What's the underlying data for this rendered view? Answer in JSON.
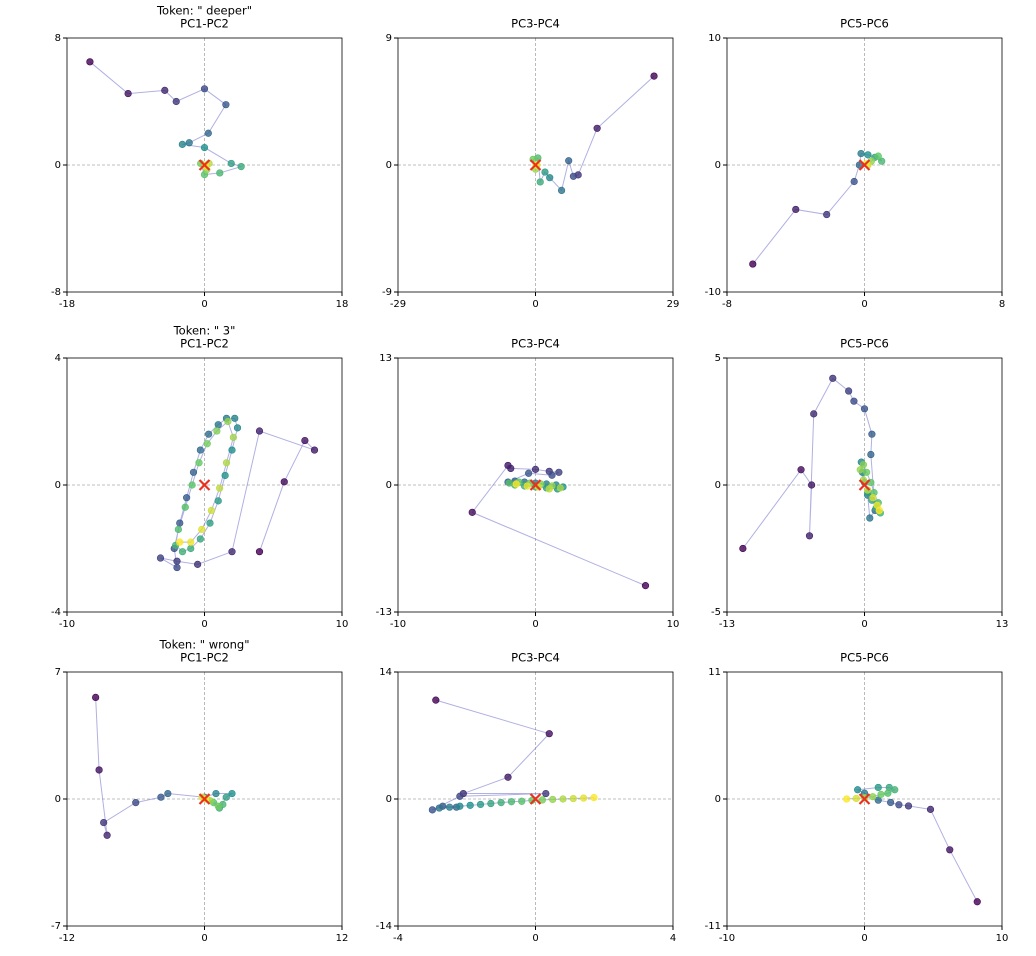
{
  "style": {
    "colormap": [
      "#440154",
      "#3b528b",
      "#21918c",
      "#5ec962",
      "#fde725"
    ],
    "line_color": "#7b7bd0",
    "marker_color": "#e8311f"
  },
  "chart_data": [
    {
      "type": "scatter",
      "title": "Token: \" deeper\"",
      "subtitle": "PC1-PC2",
      "xlim": [
        -18,
        18
      ],
      "ylim": [
        -8,
        8
      ],
      "xticks": [
        -18,
        0,
        18
      ],
      "yticks": [
        -8,
        0,
        8
      ],
      "x": [
        -15,
        -10,
        -5.2,
        -3.7,
        0,
        2.8,
        0.5,
        -2,
        -2.9,
        0,
        3.5,
        4.8,
        2,
        0,
        -0.5,
        0.3,
        0.6,
        0.2,
        0.1
      ],
      "y": [
        6.5,
        4.5,
        4.7,
        4,
        4.8,
        3.8,
        2,
        1.4,
        1.3,
        1.1,
        0.1,
        -0.1,
        -0.5,
        -0.6,
        0.1,
        -0.3,
        0.1,
        -0.1,
        0
      ],
      "marker": {
        "x": 0,
        "y": 0
      }
    },
    {
      "type": "scatter",
      "title": "PC3-PC4",
      "xlim": [
        -29,
        29
      ],
      "ylim": [
        -9,
        9
      ],
      "xticks": [
        -29,
        0,
        29
      ],
      "yticks": [
        -9,
        0,
        9
      ],
      "x": [
        25,
        13,
        9,
        8,
        7,
        5.5,
        3,
        2,
        1,
        0.5,
        -0.5,
        0,
        0.3,
        0.1
      ],
      "y": [
        6.3,
        2.6,
        -0.7,
        -0.8,
        0.3,
        -1.8,
        -0.9,
        -0.5,
        -1.2,
        0.5,
        0.4,
        -0.3,
        0,
        0
      ],
      "marker": {
        "x": 0,
        "y": 0
      }
    },
    {
      "type": "scatter",
      "title": "PC5-PC6",
      "xlim": [
        -8,
        8
      ],
      "ylim": [
        -10,
        10
      ],
      "xticks": [
        -8,
        0,
        8
      ],
      "yticks": [
        -10,
        0,
        10
      ],
      "x": [
        -6.5,
        -4,
        -2.2,
        -0.6,
        -0.3,
        -0.2,
        0.2,
        0.6,
        1,
        0.8,
        0.4,
        0.2,
        0.1
      ],
      "y": [
        -7.8,
        -3.5,
        -3.9,
        -1.3,
        0,
        0.9,
        0.8,
        0.6,
        0.3,
        0.7,
        0.3,
        0,
        0.1
      ],
      "marker": {
        "x": 0,
        "y": 0
      }
    },
    {
      "type": "scatter",
      "title": "Token: \" 3\"",
      "subtitle": "PC1-PC2",
      "xlim": [
        -10,
        10
      ],
      "ylim": [
        -4,
        4
      ],
      "xticks": [
        -10,
        0,
        10
      ],
      "yticks": [
        -4,
        0,
        4
      ],
      "x": [
        4,
        5.8,
        7.3,
        8,
        4,
        2,
        -0.5,
        -2,
        -3.2,
        -2,
        -2.2,
        -1.8,
        -1.3,
        -0.8,
        -0.3,
        0.3,
        1,
        1.6,
        2.2,
        2.4,
        2,
        1.5,
        1,
        0.4,
        -0.3,
        -1,
        -1.6,
        -2.1,
        -1.9,
        -1.4,
        -0.9,
        -0.4,
        0.2,
        0.9,
        1.7,
        2.1,
        1.6,
        1.1,
        0.5,
        -0.2,
        -1,
        -1.8
      ],
      "y": [
        -2.1,
        0.1,
        1.4,
        1.1,
        1.7,
        -2.1,
        -2.5,
        -2.4,
        -2.3,
        -2.6,
        -2,
        -1.2,
        -0.4,
        0.4,
        1.1,
        1.6,
        1.9,
        2.1,
        2.1,
        1.8,
        1.1,
        0.3,
        -0.5,
        -1.2,
        -1.7,
        -2,
        -2.1,
        -1.9,
        -1.4,
        -0.7,
        0,
        0.7,
        1.3,
        1.7,
        2,
        1.5,
        0.7,
        -0.1,
        -0.8,
        -1.4,
        -1.8,
        -1.8
      ],
      "marker": {
        "x": 0,
        "y": 0
      }
    },
    {
      "type": "scatter",
      "title": "PC3-PC4",
      "xlim": [
        -10,
        10
      ],
      "ylim": [
        -13,
        13
      ],
      "xticks": [
        -10,
        0,
        10
      ],
      "yticks": [
        -13,
        0,
        13
      ],
      "x": [
        8,
        -4.6,
        -2,
        -1.8,
        0,
        1,
        1.7,
        1.2,
        -0.5,
        -2,
        -1.5,
        -0.8,
        0,
        0.8,
        1.5,
        2,
        1.6,
        0.8,
        0,
        -0.8,
        -1.5,
        -1.9,
        -1.2,
        -0.4,
        0.4,
        1.2,
        1.8,
        1,
        0.2,
        -0.6,
        -1.4
      ],
      "y": [
        -10.3,
        -2.8,
        2,
        1.7,
        1.6,
        1.4,
        1.3,
        1,
        1.2,
        0.3,
        0.4,
        0.3,
        0.2,
        0.1,
        0,
        -0.2,
        -0.4,
        -0.3,
        -0.2,
        -0.1,
        0,
        0.2,
        0.3,
        0.2,
        0.1,
        -0.1,
        -0.3,
        -0.4,
        -0.2,
        -0.1,
        0.1
      ],
      "marker": {
        "x": 0,
        "y": 0
      }
    },
    {
      "type": "scatter",
      "title": "PC5-PC6",
      "xlim": [
        -13,
        13
      ],
      "ylim": [
        -5,
        5
      ],
      "xticks": [
        -13,
        0,
        13
      ],
      "yticks": [
        -5,
        0,
        5
      ],
      "x": [
        -11.5,
        -6,
        -5,
        -5.2,
        -4.8,
        -3,
        -1.5,
        -1,
        0,
        0.7,
        0.6,
        1,
        0.5,
        0.3,
        -0.3,
        -0.2,
        0,
        0.3,
        0.7,
        1.1,
        1.5,
        1.3,
        0.9,
        0.6,
        0.2,
        -0.1,
        -0.4,
        -0.1,
        0.3,
        0.8,
        1.2,
        1.4
      ],
      "y": [
        -2.5,
        0.6,
        0,
        -2,
        2.8,
        4.2,
        3.7,
        3.3,
        3,
        2,
        1.2,
        -1,
        -1.3,
        -0.4,
        0.9,
        0.5,
        0.1,
        -0.3,
        -0.6,
        -0.9,
        -1.1,
        -0.7,
        -0.3,
        0.1,
        0.5,
        0.8,
        0.6,
        0.2,
        -0.2,
        -0.5,
        -0.8,
        -1
      ],
      "marker": {
        "x": 0,
        "y": 0
      }
    },
    {
      "type": "scatter",
      "title": "Token: \" wrong\"",
      "subtitle": "PC1-PC2",
      "xlim": [
        -12,
        12
      ],
      "ylim": [
        -7,
        7
      ],
      "xticks": [
        -12,
        0,
        12
      ],
      "yticks": [
        -7,
        0,
        7
      ],
      "x": [
        -9.5,
        -9.2,
        -8.5,
        -8.8,
        -6,
        -3.8,
        -3.2,
        0,
        1,
        2.4,
        1.9,
        1.3,
        1.6,
        0.8,
        1.2,
        0.5,
        0.2,
        -0.2,
        0.1
      ],
      "y": [
        5.6,
        1.6,
        -2,
        -1.3,
        -0.2,
        0.1,
        0.3,
        0.1,
        0.3,
        0.3,
        0.1,
        -0.5,
        -0.3,
        -0.2,
        -0.4,
        -0.1,
        0,
        0.1,
        0
      ],
      "marker": {
        "x": 0,
        "y": 0
      }
    },
    {
      "type": "scatter",
      "title": "PC3-PC4",
      "xlim": [
        -4,
        4
      ],
      "ylim": [
        -14,
        14
      ],
      "xticks": [
        -4,
        0,
        4
      ],
      "yticks": [
        -14,
        0,
        14
      ],
      "x": [
        -2.9,
        0.4,
        -0.8,
        -2.1,
        0.3,
        -2.2,
        -3,
        -2.7,
        -2.3,
        -2.8,
        -2.5,
        -2.2,
        -1.9,
        -1.6,
        -1.3,
        -1,
        -0.7,
        -0.4,
        -0.1,
        0.2,
        0.5,
        0.8,
        1.1,
        1.4,
        1.7
      ],
      "y": [
        10.9,
        7.2,
        2.4,
        0.6,
        0.6,
        0.3,
        -1.2,
        -0.8,
        -0.9,
        -1,
        -0.9,
        -0.8,
        -0.7,
        -0.6,
        -0.5,
        -0.4,
        -0.3,
        -0.25,
        -0.15,
        -0.1,
        -0.05,
        0,
        0.05,
        0.1,
        0.15
      ],
      "marker": {
        "x": 0,
        "y": 0
      }
    },
    {
      "type": "scatter",
      "title": "PC5-PC6",
      "xlim": [
        -10,
        10
      ],
      "ylim": [
        -11,
        11
      ],
      "xticks": [
        -10,
        0,
        10
      ],
      "yticks": [
        -11,
        0,
        11
      ],
      "x": [
        8.2,
        6.2,
        4.8,
        3.2,
        2.5,
        1.9,
        1,
        0,
        -0.5,
        1,
        1.8,
        2.2,
        1.7,
        1.2,
        0.6,
        0,
        -0.6,
        -1.3
      ],
      "y": [
        -8.9,
        -4.4,
        -0.9,
        -0.6,
        -0.5,
        -0.3,
        -0.1,
        0.5,
        0.8,
        1,
        1,
        0.8,
        0.5,
        0.4,
        0.2,
        0.1,
        0.05,
        0
      ],
      "marker": {
        "x": 0,
        "y": 0
      }
    }
  ]
}
